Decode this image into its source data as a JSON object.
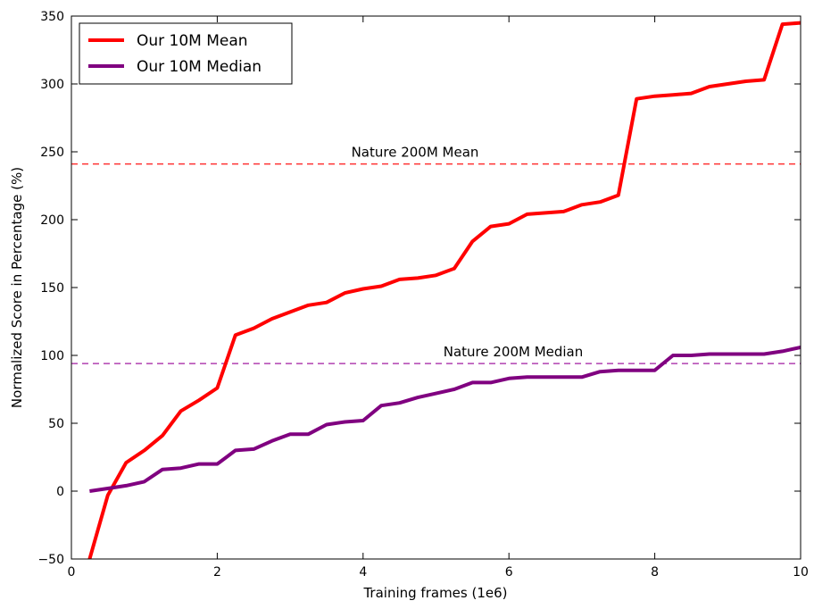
{
  "chart_data": {
    "type": "line",
    "xlabel": "Training frames (1e6)",
    "ylabel": "Normalized Score in Percentage (%)",
    "xlim": [
      0,
      10
    ],
    "ylim": [
      -50,
      350
    ],
    "xticks": [
      "0",
      "2",
      "4",
      "6",
      "8",
      "10"
    ],
    "yticks": [
      "−50",
      "0",
      "50",
      "100",
      "150",
      "200",
      "250",
      "300",
      "350"
    ],
    "grid": false,
    "legend_position": "top-left",
    "series": [
      {
        "name": "Our 10M Mean",
        "color": "#ff0000",
        "x": [
          0.25,
          0.5,
          0.75,
          1.0,
          1.25,
          1.5,
          1.75,
          2.0,
          2.25,
          2.5,
          2.75,
          3.0,
          3.25,
          3.5,
          3.75,
          4.0,
          4.25,
          4.5,
          4.75,
          5.0,
          5.25,
          5.5,
          5.75,
          6.0,
          6.25,
          6.5,
          6.75,
          7.0,
          7.25,
          7.5,
          7.75,
          8.0,
          8.25,
          8.5,
          8.75,
          9.0,
          9.25,
          9.5,
          9.75,
          10.0
        ],
        "values": [
          -50,
          -3,
          21,
          30,
          41,
          59,
          67,
          76,
          115,
          120,
          127,
          132,
          137,
          139,
          146,
          149,
          151,
          156,
          157,
          159,
          164,
          184,
          195,
          197,
          204,
          205,
          206,
          211,
          213,
          218,
          289,
          291,
          292,
          293,
          298,
          300,
          302,
          303,
          344,
          345
        ]
      },
      {
        "name": "Our 10M Median",
        "color": "#800080",
        "x": [
          0.25,
          0.5,
          0.75,
          1.0,
          1.25,
          1.5,
          1.75,
          2.0,
          2.25,
          2.5,
          2.75,
          3.0,
          3.25,
          3.5,
          3.75,
          4.0,
          4.25,
          4.5,
          4.75,
          5.0,
          5.25,
          5.5,
          5.75,
          6.0,
          6.25,
          6.5,
          6.75,
          7.0,
          7.25,
          7.5,
          7.75,
          8.0,
          8.25,
          8.5,
          8.75,
          9.0,
          9.25,
          9.5,
          9.75,
          10.0
        ],
        "values": [
          0,
          2,
          4,
          7,
          16,
          17,
          20,
          20,
          30,
          31,
          37,
          42,
          42,
          49,
          51,
          52,
          63,
          65,
          69,
          72,
          75,
          80,
          80,
          83,
          84,
          84,
          84,
          84,
          88,
          89,
          89,
          89,
          100,
          100,
          101,
          101,
          101,
          101,
          103,
          106
        ]
      }
    ],
    "reference_lines": [
      {
        "label": "Nature 200M Mean",
        "value": 241,
        "color": "#ff3333"
      },
      {
        "label": "Nature 200M Median",
        "value": 94,
        "color": "#b040b0"
      }
    ]
  }
}
